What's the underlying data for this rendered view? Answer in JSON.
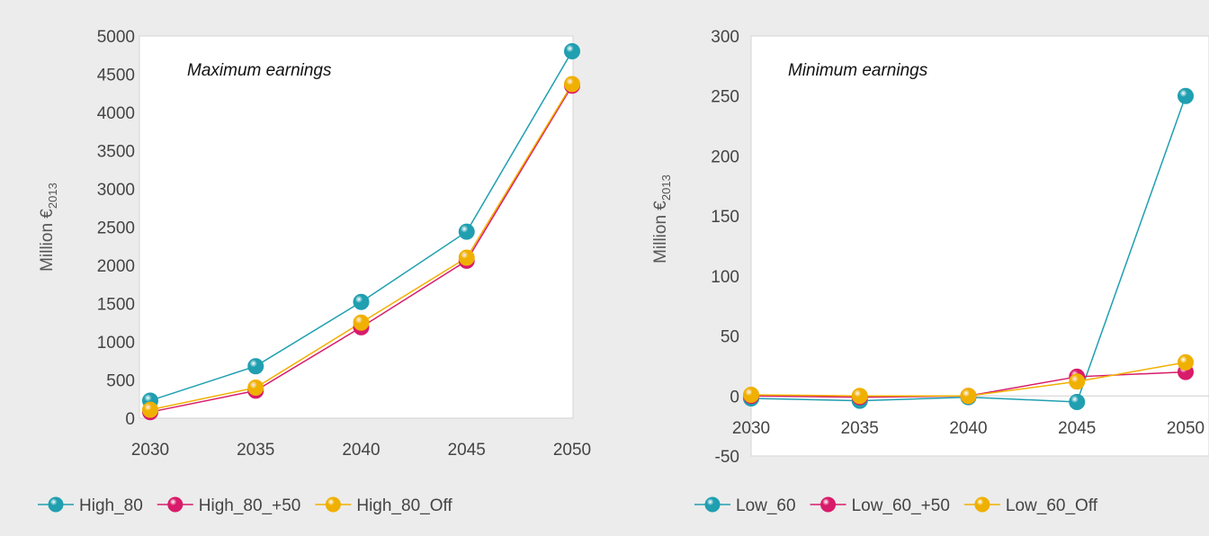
{
  "colors": {
    "teal": "#1f9fb0",
    "magenta": "#d81b6a",
    "gold": "#f0b000",
    "background": "#ececec",
    "plot_area": "#ffffff"
  },
  "chart_data": [
    {
      "type": "line",
      "title": "Maximum earnings",
      "ylabel": "Million €",
      "ylabel_sub": "2013",
      "xlabel": "",
      "categories": [
        "2030",
        "2035",
        "2040",
        "2045",
        "2050"
      ],
      "ylim": [
        0,
        5000
      ],
      "yticks": [
        0,
        500,
        1000,
        1500,
        2000,
        2500,
        3000,
        3500,
        4000,
        4500,
        5000
      ],
      "grid": false,
      "legend_position": "bottom",
      "series": [
        {
          "name": "High_80",
          "color": "#1f9fb0",
          "values": [
            230,
            680,
            1520,
            2440,
            4800
          ]
        },
        {
          "name": "High_80_+50",
          "color": "#d81b6a",
          "values": [
            80,
            360,
            1190,
            2060,
            4350
          ]
        },
        {
          "name": "High_80_Off",
          "color": "#f0b000",
          "values": [
            110,
            400,
            1250,
            2100,
            4370
          ]
        }
      ]
    },
    {
      "type": "line",
      "title": "Minimum earnings",
      "ylabel": "Million €",
      "ylabel_sub": "2013",
      "xlabel": "",
      "categories": [
        "2030",
        "2035",
        "2040",
        "2045",
        "2050"
      ],
      "ylim": [
        -50,
        300
      ],
      "yticks": [
        -50,
        0,
        50,
        100,
        150,
        200,
        250,
        300
      ],
      "grid": false,
      "legend_position": "bottom",
      "series": [
        {
          "name": "Low_60",
          "color": "#1f9fb0",
          "values": [
            -2,
            -4,
            -1,
            -5,
            250
          ]
        },
        {
          "name": "Low_60_+50",
          "color": "#d81b6a",
          "values": [
            0,
            -1,
            0,
            16,
            20
          ]
        },
        {
          "name": "Low_60_Off",
          "color": "#f0b000",
          "values": [
            1,
            0,
            0,
            12,
            28
          ]
        }
      ]
    }
  ]
}
